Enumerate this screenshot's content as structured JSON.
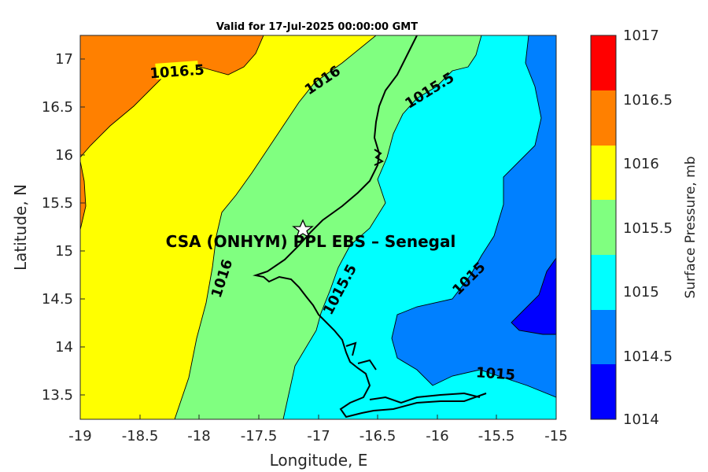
{
  "title": "Valid for 17-Jul-2025 00:00:00 GMT",
  "map": {
    "xlabel": "Longitude, E",
    "ylabel": "Latitude, N",
    "xlim": [
      -19,
      -15
    ],
    "ylim": [
      13.25,
      17.25
    ],
    "xticks": [
      "-19",
      "-18.5",
      "-18",
      "-17.5",
      "-17",
      "-16.5",
      "-16",
      "-15.5",
      "-15"
    ],
    "yticks": [
      "13.5",
      "14",
      "14.5",
      "15",
      "15.5",
      "16",
      "16.5",
      "17"
    ],
    "site_label": "CSA (ONHYM) PPL EBS  – Senegal",
    "contour_labels": [
      "1016.5",
      "1016",
      "1015.5",
      "1016",
      "1015.5",
      "1015",
      "1015"
    ]
  },
  "colorbar": {
    "label": "Surface Pressure, mb",
    "levels": [
      "1014",
      "1014.5",
      "1015",
      "1015.5",
      "1016",
      "1016.5",
      "1017"
    ],
    "colors": [
      "#0000ff",
      "#0080ff",
      "#00ffff",
      "#80ff80",
      "#ffff00",
      "#ff8000",
      "#ff0000"
    ]
  },
  "colors": {
    "band_1016_5": "#ff8000",
    "band_1016": "#ffff00",
    "band_1015_5": "#80ff80",
    "band_1015": "#00ffff",
    "band_1014_5": "#0080ff",
    "band_1014": "#0000ff"
  }
}
